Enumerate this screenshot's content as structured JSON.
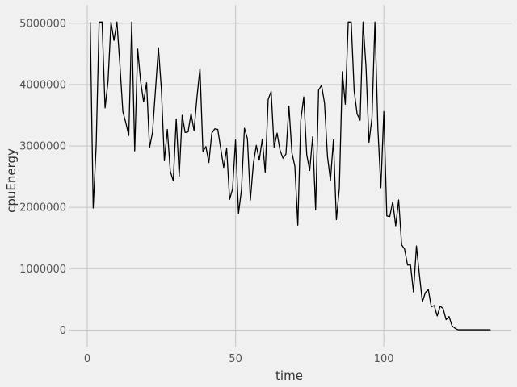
{
  "chart_data": {
    "type": "line",
    "title": "",
    "xlabel": "time",
    "ylabel": "cpuEnergy",
    "xlim": [
      -6,
      143
    ],
    "ylim": [
      -270000,
      5300000
    ],
    "x_ticks": [
      0,
      50,
      100
    ],
    "x_tick_labels": [
      "0",
      "50",
      "100"
    ],
    "y_ticks": [
      0,
      1000000,
      2000000,
      3000000,
      4000000,
      5000000
    ],
    "y_tick_labels": [
      "0",
      "1000000",
      "2000000",
      "3000000",
      "4000000",
      "5000000"
    ],
    "grid": true,
    "colors": {
      "background": "#f0f0f0",
      "grid": "#cbcbcb",
      "line": "#000000",
      "text": "#555555"
    },
    "series": [
      {
        "x": [
          1,
          2,
          3,
          4,
          5,
          6,
          7,
          8,
          9,
          10,
          11,
          12,
          13,
          14,
          15,
          16,
          17,
          18,
          19,
          20,
          21,
          22,
          23,
          24,
          25,
          26,
          27,
          28,
          29,
          30,
          31,
          32,
          33,
          34,
          35,
          36,
          37,
          38,
          39,
          40,
          41,
          42,
          43,
          44,
          45,
          46,
          47,
          48,
          49,
          50,
          51,
          52,
          53,
          54,
          55,
          56,
          57,
          58,
          59,
          60,
          61,
          62,
          63,
          64,
          65,
          66,
          67,
          68,
          69,
          70,
          71,
          72,
          73,
          74,
          75,
          76,
          77,
          78,
          79,
          80,
          81,
          82,
          83,
          84,
          85,
          86,
          87,
          88,
          89,
          90,
          91,
          92,
          93,
          94,
          95,
          96,
          97,
          98,
          99,
          100,
          101,
          102,
          103,
          104,
          105,
          106,
          107,
          108,
          109,
          110,
          111,
          112,
          113,
          114,
          115,
          116,
          117,
          118,
          119,
          120,
          121,
          122,
          123,
          124,
          125,
          126,
          127,
          128,
          129,
          130,
          131,
          132,
          133,
          134,
          135,
          136
        ],
        "y": [
          5020000,
          1990000,
          3000000,
          5020000,
          5020000,
          3620000,
          4050000,
          5020000,
          4720000,
          5020000,
          4330000,
          3560000,
          3380000,
          3170000,
          5020000,
          2920000,
          4580000,
          4050000,
          3720000,
          4030000,
          2970000,
          3220000,
          3910000,
          4600000,
          3920000,
          2760000,
          3270000,
          2590000,
          2430000,
          3440000,
          2510000,
          3500000,
          3220000,
          3230000,
          3530000,
          3250000,
          3800000,
          4260000,
          2910000,
          2990000,
          2730000,
          3210000,
          3280000,
          3270000,
          2960000,
          2650000,
          2960000,
          2130000,
          2300000,
          3100000,
          1900000,
          2290000,
          3290000,
          3120000,
          2120000,
          2710000,
          3010000,
          2770000,
          3110000,
          2570000,
          3760000,
          3890000,
          2980000,
          3210000,
          2930000,
          2800000,
          2870000,
          3650000,
          2890000,
          2670000,
          1710000,
          3420000,
          3800000,
          2860000,
          2600000,
          3150000,
          1960000,
          3910000,
          3990000,
          3700000,
          2830000,
          2440000,
          3100000,
          1800000,
          2310000,
          4210000,
          3680000,
          5020000,
          5020000,
          3900000,
          3520000,
          3420000,
          5020000,
          4280000,
          3060000,
          3460000,
          5020000,
          3280000,
          2320000,
          3560000,
          1860000,
          1850000,
          2090000,
          1700000,
          2120000,
          1390000,
          1320000,
          1060000,
          1060000,
          620000,
          1370000,
          900000,
          460000,
          610000,
          660000,
          380000,
          400000,
          230000,
          390000,
          350000,
          170000,
          220000,
          70000,
          30000,
          5000,
          5000,
          5000,
          5000,
          5000,
          5000,
          5000,
          5000,
          5000,
          5000,
          5000,
          5000
        ]
      }
    ]
  }
}
